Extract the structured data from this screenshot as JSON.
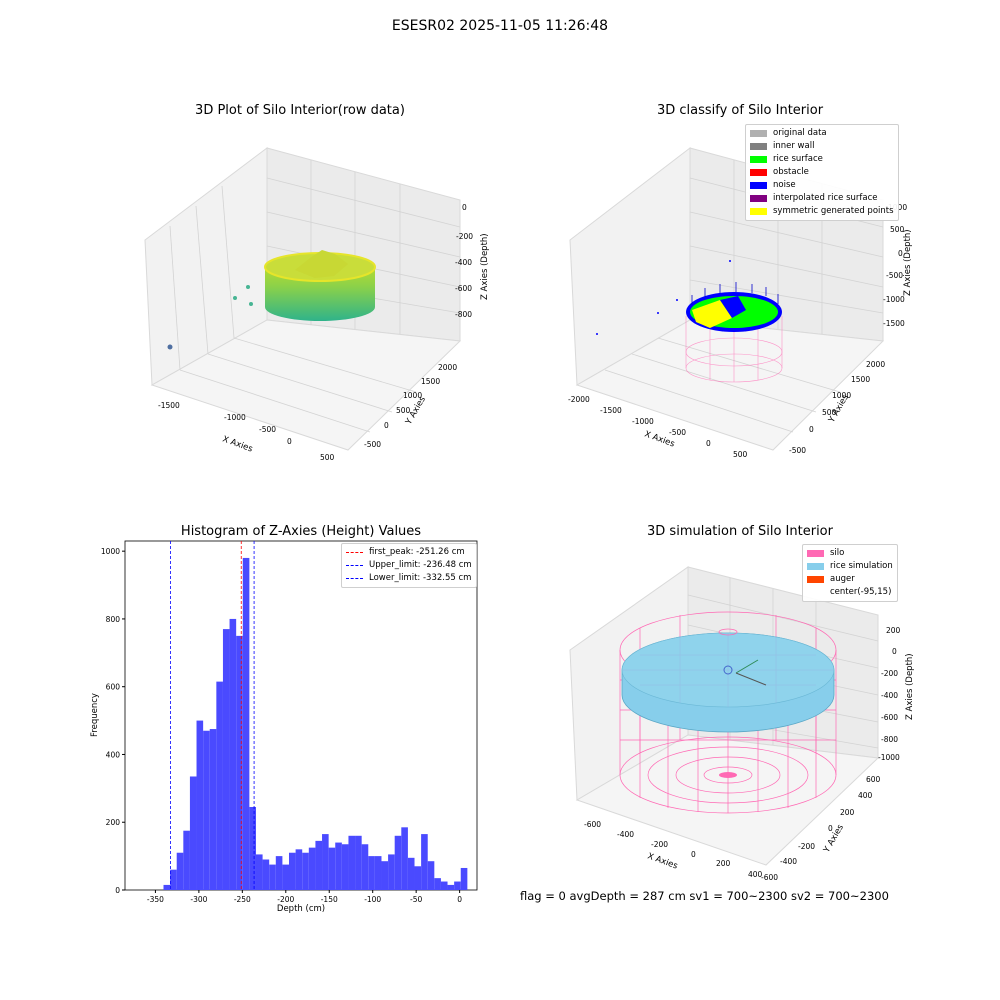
{
  "suptitle": "ESESR02 2025-11-05 11:26:48",
  "panels": {
    "raw": {
      "title": "3D Plot of Silo Interior(row data)",
      "xlabel": "X Axies",
      "ylabel": "Y Axies",
      "zlabel": "Z Axies (Depth)",
      "xticks": [
        "-1500",
        "-1000",
        "-500",
        "0",
        "500"
      ],
      "yticks": [
        "2000",
        "1500",
        "1000",
        "500",
        "0",
        "-500"
      ],
      "zticks": [
        "0",
        "-200",
        "-400",
        "-600",
        "-800"
      ]
    },
    "classify": {
      "title": "3D classify of Silo Interior",
      "xlabel": "X Axies",
      "ylabel": "Y Axies",
      "zlabel": "Z Axies (Depth)",
      "xticks": [
        "-2000",
        "-1500",
        "-1000",
        "-500",
        "0",
        "500"
      ],
      "yticks": [
        "2000",
        "1500",
        "1000",
        "500",
        "0",
        "-500"
      ],
      "zticks": [
        "1000",
        "500",
        "0",
        "-500",
        "-1000",
        "-1500"
      ],
      "legend": [
        {
          "label": "original data",
          "color": "#b0b0b0"
        },
        {
          "label": "inner wall",
          "color": "#808080"
        },
        {
          "label": "rice surface",
          "color": "#00ff00"
        },
        {
          "label": "obstacle",
          "color": "#ff0000"
        },
        {
          "label": "noise",
          "color": "#0000ff"
        },
        {
          "label": "interpolated rice surface",
          "color": "#800080"
        },
        {
          "label": "symmetric generated points",
          "color": "#ffff00"
        }
      ]
    },
    "histogram": {
      "title": "Histogram of Z-Axies (Height) Values",
      "xlabel": "Depth (cm)",
      "ylabel": "Frequency",
      "legend": [
        {
          "label": "first_peak: -251.26 cm",
          "color": "#ff0000"
        },
        {
          "label": "Upper_limit: -236.48 cm",
          "color": "#0000ff"
        },
        {
          "label": "Lower_limit: -332.55 cm",
          "color": "#0000ff"
        }
      ]
    },
    "simulation": {
      "title": "3D simulation of Silo Interior",
      "xlabel": "X Axies",
      "ylabel": "Y Axies",
      "zlabel": "Z Axies (Depth)",
      "xticks": [
        "-600",
        "-400",
        "-200",
        "0",
        "200",
        "400"
      ],
      "yticks": [
        "600",
        "400",
        "200",
        "0",
        "-200",
        "-400",
        "-600"
      ],
      "zticks": [
        "200",
        "0",
        "-200",
        "-400",
        "-600",
        "-800",
        "-1000"
      ],
      "legend": [
        {
          "label": "silo",
          "color": "#ff69b4"
        },
        {
          "label": "rice simulation",
          "color": "#87ceeb"
        },
        {
          "label": "auger",
          "color": "#ff4500"
        },
        {
          "label": "center(-95,15)",
          "color": ""
        }
      ]
    }
  },
  "footer": "flag = 0     avgDepth = 287 cm  sv1 = 700~2300  sv2 = 700~2300",
  "chart_data": {
    "type": "bar",
    "title": "Histogram of Z-Axies (Height) Values",
    "xlabel": "Depth (cm)",
    "ylabel": "Frequency",
    "xlim": [
      -385,
      20
    ],
    "ylim": [
      0,
      1030
    ],
    "xticks": [
      -350,
      -300,
      -250,
      -200,
      -150,
      -100,
      -50,
      0
    ],
    "yticks": [
      0,
      200,
      400,
      600,
      800,
      1000
    ],
    "bin_start": -340.7,
    "bin_width": 7.6,
    "values": [
      15,
      60,
      110,
      175,
      335,
      500,
      470,
      475,
      615,
      770,
      800,
      750,
      980,
      245,
      105,
      90,
      75,
      100,
      75,
      110,
      120,
      110,
      125,
      145,
      165,
      125,
      140,
      135,
      160,
      160,
      135,
      100,
      100,
      85,
      105,
      160,
      185,
      95,
      70,
      165,
      85,
      35,
      25,
      15,
      25,
      65
    ],
    "vlines": [
      {
        "x": -251.26,
        "color": "#ff0000",
        "label": "first_peak: -251.26 cm"
      },
      {
        "x": -236.48,
        "color": "#0000ff",
        "label": "Upper_limit: -236.48 cm"
      },
      {
        "x": -332.55,
        "color": "#0000ff",
        "label": "Lower_limit: -332.55 cm"
      }
    ],
    "bar_color": "#4a4aff"
  }
}
